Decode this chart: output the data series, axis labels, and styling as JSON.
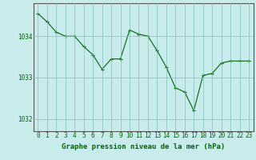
{
  "x": [
    0,
    1,
    2,
    3,
    4,
    5,
    6,
    7,
    8,
    9,
    10,
    11,
    12,
    13,
    14,
    15,
    16,
    17,
    18,
    19,
    20,
    21,
    22,
    23
  ],
  "y": [
    1034.55,
    1034.35,
    1034.1,
    1034.0,
    1034.0,
    1033.75,
    1033.55,
    1033.2,
    1033.45,
    1033.45,
    1034.15,
    1034.05,
    1034.0,
    1033.65,
    1033.25,
    1032.75,
    1032.65,
    1032.2,
    1033.05,
    1033.1,
    1033.35,
    1033.4,
    1033.4,
    1033.4
  ],
  "background_color": "#c8ecec",
  "grid_color": "#7fbfbf",
  "line_color": "#006600",
  "marker_color": "#006600",
  "ytick_labels": [
    "1032",
    "1033",
    "1034"
  ],
  "ytick_values": [
    1032,
    1033,
    1034
  ],
  "ylim": [
    1031.7,
    1034.8
  ],
  "xlim": [
    -0.5,
    23.5
  ],
  "xtick_labels": [
    "0",
    "1",
    "2",
    "3",
    "4",
    "5",
    "6",
    "7",
    "8",
    "9",
    "10",
    "11",
    "12",
    "13",
    "14",
    "15",
    "16",
    "17",
    "18",
    "19",
    "20",
    "21",
    "22",
    "23"
  ],
  "title": "Graphe pression niveau de la mer (hPa)",
  "title_fontsize": 6.5,
  "tick_fontsize": 5.5,
  "title_color": "#006600",
  "axis_color": "#555555"
}
